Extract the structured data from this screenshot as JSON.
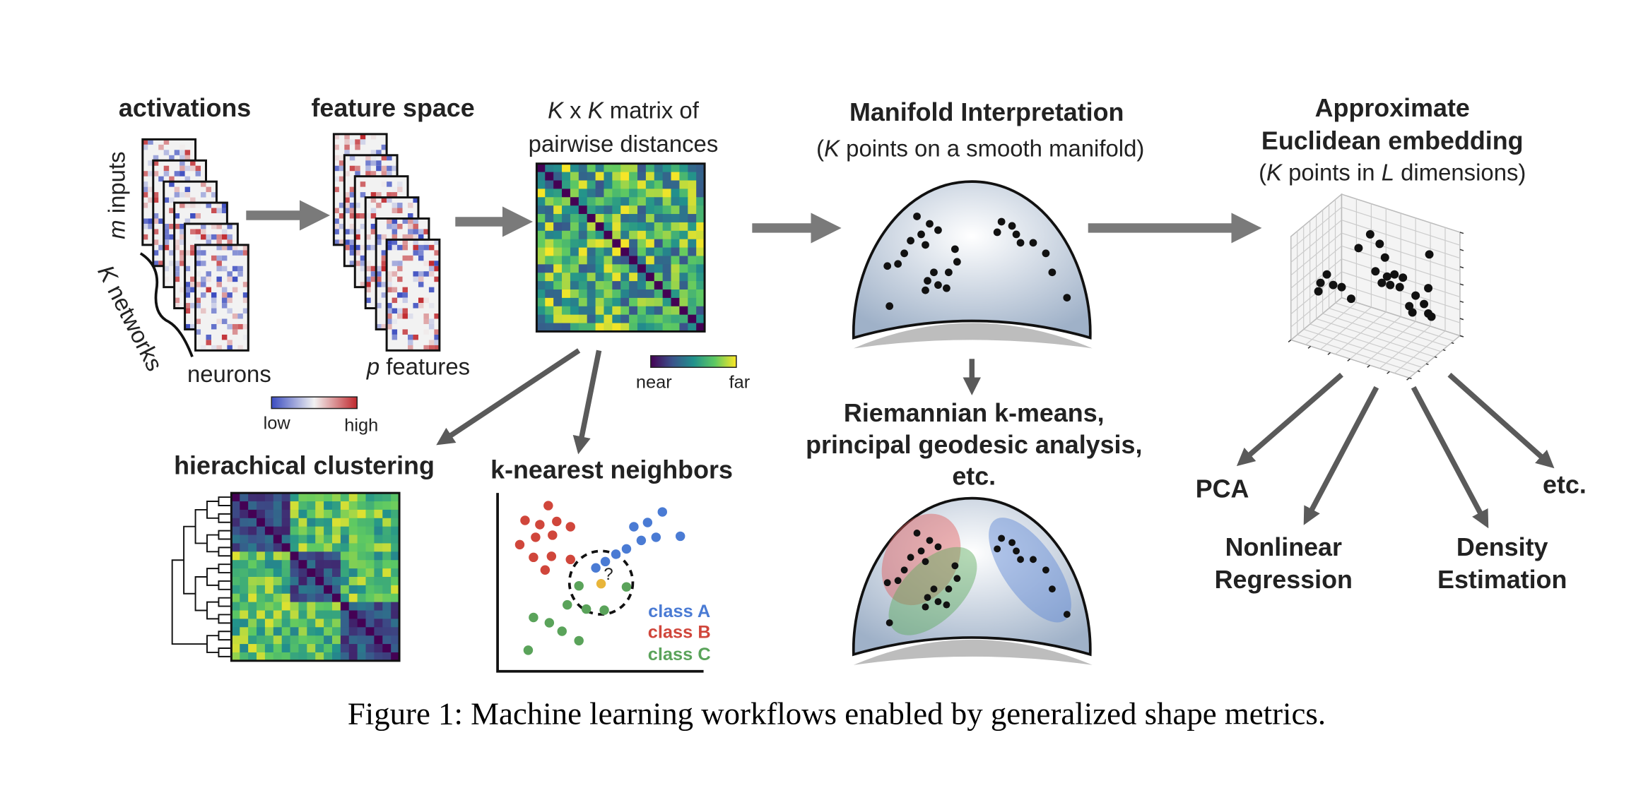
{
  "panels": {
    "activations": {
      "title": "activations",
      "rows_label": {
        "var": "m",
        "text": " inputs"
      },
      "stack_label": {
        "var": "K",
        "text": " networks"
      },
      "cols_label": "neurons",
      "colorbar": {
        "low": "low",
        "high": "high"
      }
    },
    "features": {
      "title": "feature space",
      "cols_label": {
        "var": "p",
        "text": " features"
      }
    },
    "distances": {
      "title": {
        "var1": "K",
        "op": " x ",
        "var2": "K",
        "text": " matrix of"
      },
      "title_line2": "pairwise distances",
      "colorbar": {
        "low": "near",
        "high": "far"
      }
    },
    "clustering": {
      "title": "hierachical clustering"
    },
    "knn": {
      "title": "k-nearest neighbors",
      "query": "?",
      "classes": [
        "class A",
        "class B",
        "class C"
      ]
    },
    "manifold": {
      "title": "Manifold Interpretation",
      "subtitle": {
        "open": "(",
        "var": "K",
        "text": " points on a smooth manifold)"
      }
    },
    "riemannian": {
      "lines": [
        "Riemannian k-means,",
        "principal geodesic analysis,",
        "etc."
      ]
    },
    "embedding": {
      "title_lines": [
        "Approximate",
        "Euclidean embedding"
      ],
      "subtitle": {
        "open": "(",
        "var1": "K",
        "mid": " points in ",
        "var2": "L",
        "text": " dimensions)"
      }
    },
    "downstream": {
      "pca": "PCA",
      "regression": [
        "Nonlinear",
        "Regression"
      ],
      "density": [
        "Density",
        "Estimation"
      ],
      "etc": "etc."
    }
  },
  "caption": "Figure 1: Machine learning workflows enabled by generalized shape metrics."
}
